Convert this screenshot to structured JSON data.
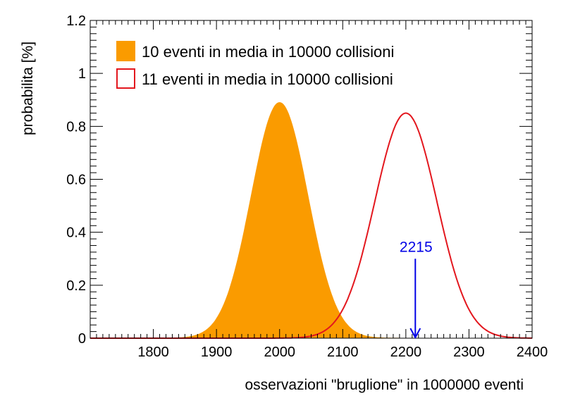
{
  "chart_data": {
    "type": "area",
    "xlabel": "osservazioni \"bruglione\" in 1000000 eventi",
    "ylabel": "probabilita [%]",
    "xlim": [
      1700,
      2400
    ],
    "ylim": [
      0,
      1.2
    ],
    "x_ticks": [
      "1800",
      "1900",
      "2000",
      "2100",
      "2200",
      "2300",
      "2400"
    ],
    "y_ticks": [
      "0",
      "0.2",
      "0.4",
      "0.6",
      "0.8",
      "1",
      "1.2"
    ],
    "grid": false,
    "legend_position": "top-left",
    "series": [
      {
        "name": "10 eventi in media in 10000 collisioni",
        "style": "filled",
        "color": "#fa9b00",
        "mean": 2000,
        "peak": 0.89
      },
      {
        "name": "11 eventi in media in 10000 collisioni",
        "style": "line",
        "color": "#e3171e",
        "mean": 2200,
        "peak": 0.85
      }
    ],
    "annotations": [
      {
        "text": "2215",
        "x": 2215,
        "y_from": 0.3,
        "y_to": 0,
        "color": "#0000e6"
      }
    ]
  }
}
